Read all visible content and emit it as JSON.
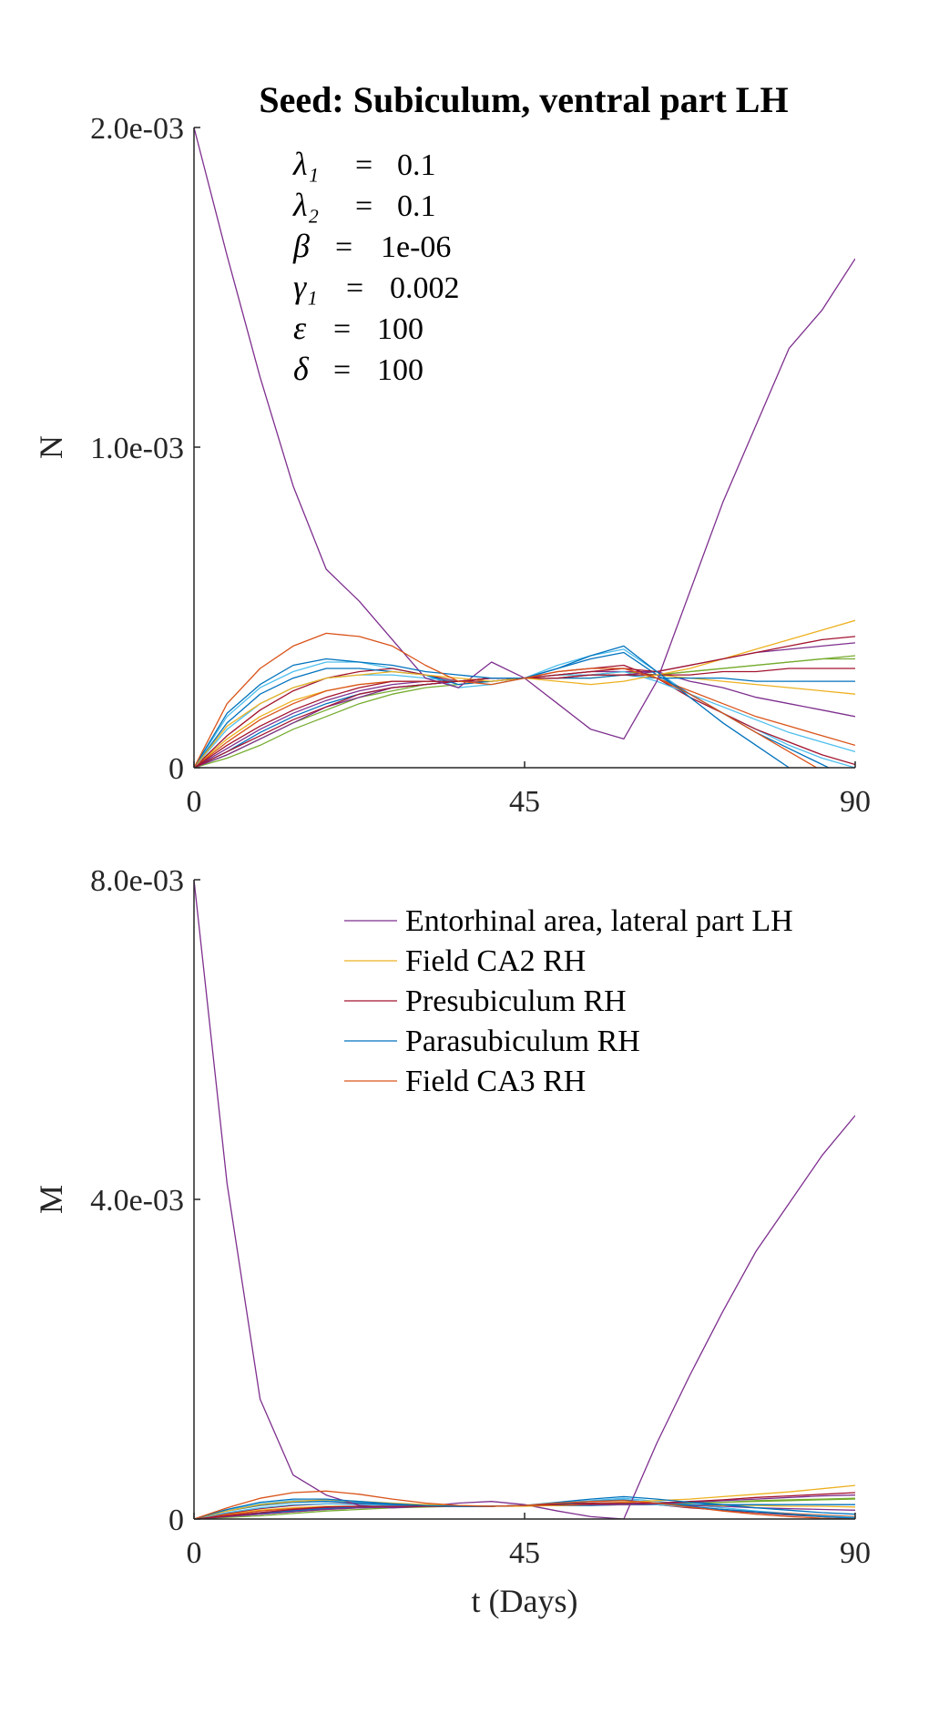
{
  "chart_data": [
    {
      "type": "line",
      "title": "Seed: Subiculum, ventral part LH",
      "xlabel": "",
      "ylabel": "N",
      "xlim": [
        0,
        90
      ],
      "ylim": [
        0,
        0.002
      ],
      "xticks": [
        "0",
        "45",
        "90"
      ],
      "yticks": [
        "0",
        "1.0e-03",
        "2.0e-03"
      ],
      "params": [
        {
          "symbol": "λ₁",
          "value": "0.1"
        },
        {
          "symbol": "λ₂",
          "value": "0.1"
        },
        {
          "symbol": "β",
          "value": "1e-06"
        },
        {
          "symbol": "γ₁",
          "value": "0.002"
        },
        {
          "symbol": "ε",
          "value": "100"
        },
        {
          "symbol": "δ",
          "value": "100"
        }
      ],
      "x": [
        0,
        4.5,
        9,
        13.5,
        18,
        22.5,
        27,
        31.5,
        36,
        40.5,
        45,
        49.5,
        54,
        58.5,
        63,
        67.5,
        72,
        76.5,
        81,
        85.5,
        90
      ],
      "series": [
        {
          "name": "Entorhinal area, lateral part LH",
          "color": "#7e2f8e",
          "values": [
            0.002,
            0.0016,
            0.00122,
            0.00088,
            0.00062,
            0.00052,
            0.0004,
            0.00028,
            0.00025,
            0.00033,
            0.00028,
            0.0002,
            0.00012,
            9e-05,
            0.00027,
            0.00055,
            0.00083,
            0.00107,
            0.00131,
            0.00143,
            0.00159
          ]
        },
        {
          "name": "Field CA2 RH",
          "color": "#edb120",
          "values": [
            0,
            0.00013,
            0.0002,
            0.00025,
            0.00028,
            0.00029,
            0.0003,
            0.00029,
            0.00028,
            0.00027,
            0.00028,
            0.00027,
            0.00026,
            0.00027,
            0.00029,
            0.00031,
            0.00034,
            0.00037,
            0.0004,
            0.00043,
            0.00046
          ]
        },
        {
          "name": "Presubiculum RH",
          "color": "#a2142f",
          "values": [
            0,
            7e-05,
            0.00013,
            0.00018,
            0.00022,
            0.00025,
            0.00027,
            0.00027,
            0.00027,
            0.00028,
            0.00028,
            0.00029,
            0.0003,
            0.00031,
            0.0003,
            0.00032,
            0.00034,
            0.00036,
            0.00038,
            0.0004,
            0.00041
          ]
        },
        {
          "name": "Parasubiculum RH",
          "color": "#0072bd",
          "values": [
            0,
            0.00017,
            0.00026,
            0.00032,
            0.00034,
            0.00033,
            0.00032,
            0.0003,
            0.00029,
            0.00028,
            0.00028,
            0.00031,
            0.00035,
            0.00038,
            0.0003,
            0.00022,
            0.00014,
            7e-05,
            0.0,
            -5e-05,
            -0.0001
          ]
        },
        {
          "name": "Field CA3 RH",
          "color": "#d95319",
          "values": [
            0,
            0.0002,
            0.00031,
            0.00038,
            0.00042,
            0.00041,
            0.00038,
            0.00032,
            0.00027,
            0.00026,
            0.00028,
            0.0003,
            0.00031,
            0.00031,
            0.00028,
            0.00023,
            0.00017,
            0.00011,
            5e-05,
            -1e-05,
            -7e-05
          ]
        },
        {
          "name": "",
          "color": "#77ac30",
          "values": [
            0,
            4e-05,
            9e-05,
            0.00014,
            0.00018,
            0.00022,
            0.00024,
            0.00026,
            0.00027,
            0.00028,
            0.00028,
            0.00029,
            0.00029,
            0.0003,
            0.00029,
            0.0003,
            0.00031,
            0.00032,
            0.00033,
            0.00034,
            0.00035
          ]
        },
        {
          "name": "",
          "color": "#4dbeee",
          "values": [
            0,
            0.00016,
            0.00025,
            0.0003,
            0.00033,
            0.00033,
            0.00031,
            0.00029,
            0.00025,
            0.00026,
            0.00028,
            0.00032,
            0.00035,
            0.00037,
            0.0003,
            0.00023,
            0.00017,
            0.00012,
            7e-05,
            3e-05,
            0.0
          ]
        },
        {
          "name": "",
          "color": "#7e2f8e",
          "values": [
            0,
            6e-05,
            0.00012,
            0.00017,
            0.00021,
            0.00024,
            0.00026,
            0.00027,
            0.00027,
            0.00028,
            0.00028,
            0.00029,
            0.0003,
            0.0003,
            0.0003,
            0.00027,
            0.00025,
            0.00022,
            0.0002,
            0.00018,
            0.00016
          ]
        },
        {
          "name": "",
          "color": "#edb120",
          "values": [
            0,
            9e-05,
            0.00016,
            0.00021,
            0.00024,
            0.00026,
            0.00027,
            0.00027,
            0.00027,
            0.00028,
            0.00028,
            0.00028,
            0.00028,
            0.00029,
            0.00029,
            0.00028,
            0.00027,
            0.00026,
            0.00025,
            0.00024,
            0.00023
          ]
        },
        {
          "name": "",
          "color": "#a2142f",
          "values": [
            0,
            0.0001,
            0.00018,
            0.00024,
            0.00028,
            0.0003,
            0.00031,
            0.00029,
            0.00027,
            0.00027,
            0.00028,
            0.0003,
            0.00031,
            0.00032,
            0.00028,
            0.00022,
            0.00017,
            0.00012,
            8e-05,
            4e-05,
            1e-05
          ]
        },
        {
          "name": "",
          "color": "#0072bd",
          "values": [
            0,
            5e-05,
            0.00011,
            0.00016,
            0.0002,
            0.00023,
            0.00025,
            0.00026,
            0.00027,
            0.00028,
            0.00028,
            0.00028,
            0.00028,
            0.00029,
            0.00028,
            0.00028,
            0.00028,
            0.00027,
            0.00027,
            0.00027,
            0.00027
          ]
        },
        {
          "name": "",
          "color": "#d95319",
          "values": [
            0,
            8e-05,
            0.00015,
            0.0002,
            0.00024,
            0.00026,
            0.00027,
            0.00027,
            0.00027,
            0.00028,
            0.00028,
            0.00029,
            0.0003,
            0.00031,
            0.00028,
            0.00024,
            0.0002,
            0.00016,
            0.00013,
            0.0001,
            7e-05
          ]
        },
        {
          "name": "",
          "color": "#77ac30",
          "values": [
            0,
            3e-05,
            7e-05,
            0.00012,
            0.00016,
            0.0002,
            0.00023,
            0.00025,
            0.00026,
            0.00027,
            0.00028,
            0.00028,
            0.00029,
            0.00029,
            0.00029,
            0.0003,
            0.00031,
            0.00032,
            0.00033,
            0.00034,
            0.00034
          ]
        },
        {
          "name": "",
          "color": "#4dbeee",
          "values": [
            0,
            0.00012,
            0.0002,
            0.00025,
            0.00028,
            0.00029,
            0.00029,
            0.00028,
            0.00027,
            0.00028,
            0.00028,
            0.00029,
            0.00029,
            0.0003,
            0.00027,
            0.00023,
            0.00019,
            0.00015,
            0.00011,
            8e-05,
            5e-05
          ]
        },
        {
          "name": "",
          "color": "#7e2f8e",
          "values": [
            0,
            4e-05,
            9e-05,
            0.00014,
            0.00019,
            0.00022,
            0.00025,
            0.00026,
            0.00027,
            0.00028,
            0.00028,
            0.00028,
            0.00029,
            0.00029,
            0.0003,
            0.00032,
            0.00034,
            0.00036,
            0.00037,
            0.00038,
            0.00039
          ]
        },
        {
          "name": "",
          "color": "#a2142f",
          "values": [
            0,
            5e-05,
            0.0001,
            0.00015,
            0.00019,
            0.00023,
            0.00025,
            0.00026,
            0.00027,
            0.00028,
            0.00028,
            0.00028,
            0.00029,
            0.00029,
            0.00029,
            0.00029,
            0.0003,
            0.0003,
            0.00031,
            0.00031,
            0.00031
          ]
        },
        {
          "name": "",
          "color": "#0072bd",
          "values": [
            0,
            0.00014,
            0.00023,
            0.00028,
            0.00031,
            0.00031,
            0.0003,
            0.00029,
            0.00026,
            0.00027,
            0.00028,
            0.00031,
            0.00034,
            0.00036,
            0.00029,
            0.00023,
            0.00017,
            0.00011,
            6e-05,
            1e-05,
            -4e-05
          ]
        }
      ]
    },
    {
      "type": "line",
      "title": "",
      "xlabel": "t (Days)",
      "ylabel": "M",
      "xlim": [
        0,
        90
      ],
      "ylim": [
        0,
        0.008
      ],
      "xticks": [
        "0",
        "45",
        "90"
      ],
      "yticks": [
        "0",
        "4.0e-03",
        "8.0e-03"
      ],
      "legend_position": "top-right",
      "x": [
        0,
        4.5,
        9,
        13.5,
        18,
        22.5,
        27,
        31.5,
        36,
        40.5,
        45,
        49.5,
        54,
        58.5,
        63,
        67.5,
        72,
        76.5,
        81,
        85.5,
        90
      ],
      "series": [
        {
          "name": "Entorhinal area, lateral part LH",
          "color": "#7e2f8e",
          "values": [
            0.008,
            0.0042,
            0.0015,
            0.00055,
            0.0003,
            0.00017,
            0.00014,
            0.00016,
            0.0002,
            0.00022,
            0.00018,
            0.0001,
            3e-05,
            0.0,
            0.00095,
            0.0018,
            0.0026,
            0.00335,
            0.00395,
            0.00455,
            0.00505
          ]
        },
        {
          "name": "Field CA2 RH",
          "color": "#edb120",
          "values": [
            0,
            0.0001,
            0.00018,
            0.00022,
            0.00024,
            0.00022,
            0.0002,
            0.00018,
            0.00017,
            0.00016,
            0.00016,
            0.00017,
            0.00019,
            0.00021,
            0.00023,
            0.00025,
            0.00028,
            0.00031,
            0.00034,
            0.00038,
            0.00042
          ]
        },
        {
          "name": "Presubiculum RH",
          "color": "#a2142f",
          "values": [
            0,
            4e-05,
            8e-05,
            0.00012,
            0.00015,
            0.00016,
            0.00016,
            0.00016,
            0.00016,
            0.00016,
            0.00017,
            0.00018,
            0.00019,
            0.0002,
            0.0002,
            0.00022,
            0.00024,
            0.00027,
            0.00029,
            0.00031,
            0.00033
          ]
        },
        {
          "name": "Parasubiculum RH",
          "color": "#0072bd",
          "values": [
            0,
            0.00012,
            0.00021,
            0.00025,
            0.00025,
            0.00022,
            0.00019,
            0.00017,
            0.00016,
            0.00016,
            0.00017,
            0.00021,
            0.00025,
            0.00028,
            0.00025,
            0.00021,
            0.00018,
            0.00014,
            0.00011,
            8e-05,
            6e-05
          ]
        },
        {
          "name": "Field CA3 RH",
          "color": "#d95319",
          "values": [
            0,
            0.00014,
            0.00026,
            0.00033,
            0.00035,
            0.00031,
            0.00025,
            0.0002,
            0.00017,
            0.00016,
            0.00017,
            0.0002,
            0.00022,
            0.00023,
            0.0002,
            0.00015,
            0.0001,
            6e-05,
            3e-05,
            1e-05,
            0.0
          ]
        },
        {
          "name": "",
          "color": "#77ac30",
          "values": [
            0,
            3e-05,
            6e-05,
            9e-05,
            0.00012,
            0.00014,
            0.00015,
            0.00016,
            0.00016,
            0.00016,
            0.00017,
            0.00017,
            0.00018,
            0.00019,
            0.00019,
            0.0002,
            0.00021,
            0.00023,
            0.00024,
            0.00025,
            0.00026
          ]
        },
        {
          "name": "",
          "color": "#4dbeee",
          "values": [
            0,
            0.00011,
            0.00019,
            0.00023,
            0.00023,
            0.00021,
            0.00018,
            0.00017,
            0.00016,
            0.00016,
            0.00017,
            0.0002,
            0.00023,
            0.00026,
            0.00022,
            0.00018,
            0.00014,
            0.0001,
            7e-05,
            4e-05,
            2e-05
          ]
        },
        {
          "name": "",
          "color": "#7e2f8e",
          "values": [
            0,
            4e-05,
            8e-05,
            0.00011,
            0.00014,
            0.00015,
            0.00016,
            0.00016,
            0.00016,
            0.00016,
            0.00017,
            0.00017,
            0.00018,
            0.00018,
            0.00018,
            0.00017,
            0.00016,
            0.00014,
            0.00013,
            0.00012,
            0.00011
          ]
        },
        {
          "name": "",
          "color": "#edb120",
          "values": [
            0,
            6e-05,
            0.00011,
            0.00014,
            0.00016,
            0.00016,
            0.00016,
            0.00016,
            0.00016,
            0.00016,
            0.00017,
            0.00017,
            0.00017,
            0.00018,
            0.00018,
            0.00018,
            0.00017,
            0.00017,
            0.00016,
            0.00016,
            0.00015
          ]
        },
        {
          "name": "",
          "color": "#a2142f",
          "values": [
            0,
            7e-05,
            0.00013,
            0.00017,
            0.00019,
            0.00019,
            0.00018,
            0.00017,
            0.00016,
            0.00016,
            0.00017,
            0.00019,
            0.0002,
            0.00021,
            0.00018,
            0.00014,
            0.00011,
            8e-05,
            5e-05,
            3e-05,
            1e-05
          ]
        },
        {
          "name": "",
          "color": "#0072bd",
          "values": [
            0,
            3e-05,
            7e-05,
            0.0001,
            0.00013,
            0.00015,
            0.00015,
            0.00016,
            0.00016,
            0.00016,
            0.00017,
            0.00017,
            0.00017,
            0.00018,
            0.00018,
            0.00018,
            0.00018,
            0.00018,
            0.00018,
            0.00018,
            0.00018
          ]
        },
        {
          "name": "",
          "color": "#d95319",
          "values": [
            0,
            5e-05,
            0.0001,
            0.00013,
            0.00015,
            0.00016,
            0.00016,
            0.00016,
            0.00016,
            0.00016,
            0.00017,
            0.00018,
            0.00019,
            0.0002,
            0.00018,
            0.00015,
            0.00012,
            9e-05,
            7e-05,
            5e-05,
            3e-05
          ]
        },
        {
          "name": "",
          "color": "#77ac30",
          "values": [
            0,
            2e-05,
            4e-05,
            7e-05,
            0.0001,
            0.00012,
            0.00014,
            0.00015,
            0.00016,
            0.00016,
            0.00017,
            0.00017,
            0.00018,
            0.00018,
            0.00019,
            0.0002,
            0.00021,
            0.00022,
            0.00023,
            0.00024,
            0.00025
          ]
        },
        {
          "name": "",
          "color": "#4dbeee",
          "values": [
            0,
            8e-05,
            0.00014,
            0.00018,
            0.00019,
            0.00018,
            0.00017,
            0.00016,
            0.00016,
            0.00016,
            0.00017,
            0.00018,
            0.00019,
            0.0002,
            0.00018,
            0.00015,
            0.00012,
            9e-05,
            6e-05,
            4e-05,
            2e-05
          ]
        },
        {
          "name": "",
          "color": "#7e2f8e",
          "values": [
            0,
            3e-05,
            6e-05,
            9e-05,
            0.00012,
            0.00014,
            0.00015,
            0.00016,
            0.00016,
            0.00016,
            0.00017,
            0.00017,
            0.00018,
            0.00018,
            0.00019,
            0.00021,
            0.00023,
            0.00025,
            0.00027,
            0.00029,
            0.0003
          ]
        },
        {
          "name": "",
          "color": "#0072bd",
          "values": [
            0,
            0.0001,
            0.00017,
            0.00021,
            0.00022,
            0.0002,
            0.00018,
            0.00017,
            0.00016,
            0.00016,
            0.00017,
            0.00019,
            0.00022,
            0.00024,
            0.0002,
            0.00016,
            0.00012,
            9e-05,
            6e-05,
            3e-05,
            1e-05
          ]
        }
      ]
    }
  ]
}
